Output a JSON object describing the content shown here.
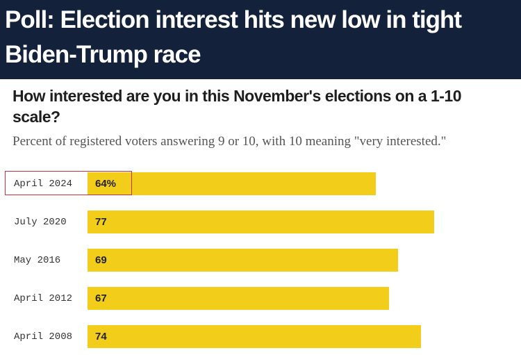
{
  "headline": "Poll: Election interest hits new low in tight Biden-Trump race",
  "chart_data": {
    "type": "bar",
    "orientation": "horizontal",
    "title": "How interested are you in this November's elections on a 1-10 scale?",
    "subtitle": "Percent of registered voters answering 9 or 10, with 10 meaning \"very interested.\"",
    "categories": [
      "April 2024",
      "July 2020",
      "May 2016",
      "April 2012",
      "April 2008"
    ],
    "values": [
      64,
      77,
      69,
      67,
      74
    ],
    "value_labels": [
      "64%",
      "77",
      "69",
      "67",
      "74"
    ],
    "xlim": [
      0,
      100
    ],
    "xlabel": "",
    "ylabel": "",
    "grid": false,
    "highlighted_category": "April 2024"
  },
  "colors": {
    "header_bg": "#14213a",
    "bar": "#f2cd1a",
    "highlight": "#c8323c"
  }
}
